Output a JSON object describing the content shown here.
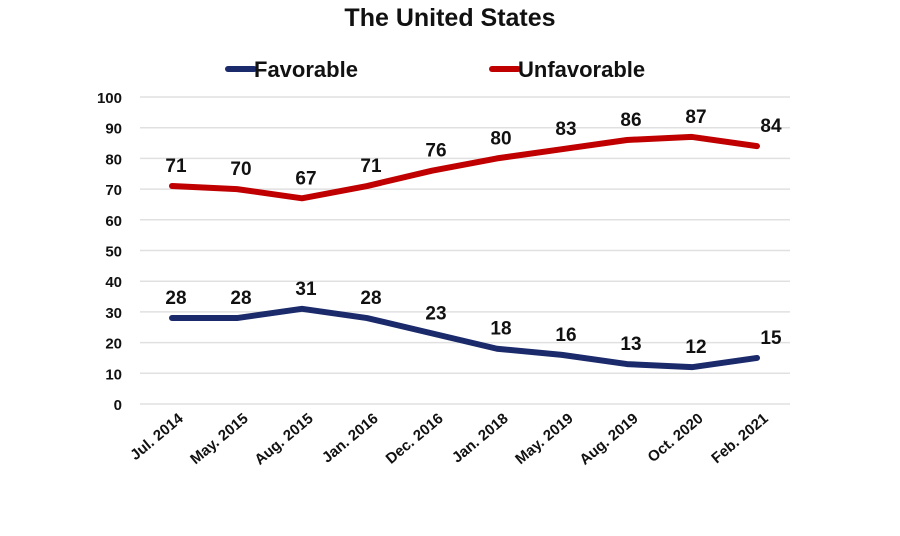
{
  "chart_data": {
    "type": "line",
    "title": "The United States",
    "xlabel": "",
    "ylabel": "",
    "ylim": [
      0,
      100
    ],
    "yticks": [
      0,
      10,
      20,
      30,
      40,
      50,
      60,
      70,
      80,
      90,
      100
    ],
    "grid": true,
    "legend_position": "top",
    "categories": [
      "Jul. 2014",
      "May. 2015",
      "Aug. 2015",
      "Jan. 2016",
      "Dec. 2016",
      "Jan. 2018",
      "May. 2019",
      "Aug. 2019",
      "Oct. 2020",
      "Feb. 2021"
    ],
    "series": [
      {
        "name": "Favorable",
        "color": "#1b2a6b",
        "values": [
          28,
          28,
          31,
          28,
          23,
          18,
          16,
          13,
          12,
          15
        ]
      },
      {
        "name": "Unfavorable",
        "color": "#c00000",
        "values": [
          71,
          70,
          67,
          71,
          76,
          80,
          83,
          86,
          87,
          84
        ]
      }
    ]
  }
}
